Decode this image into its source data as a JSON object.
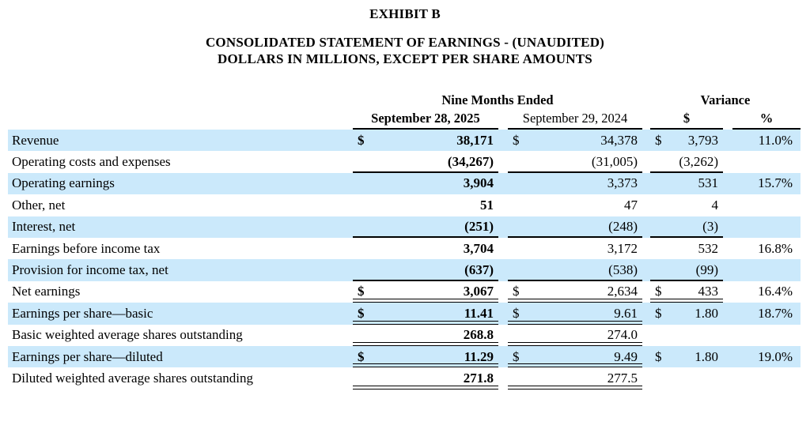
{
  "header": {
    "exhibit": "EXHIBIT B",
    "title_line1": "CONSOLIDATED STATEMENT OF EARNINGS - (UNAUDITED)",
    "title_line2": "DOLLARS IN MILLIONS, EXCEPT PER SHARE AMOUNTS"
  },
  "table": {
    "group_left": "Nine Months Ended",
    "group_right": "Variance",
    "columns": [
      "September 28, 2025",
      "September 29, 2024",
      "$",
      "%"
    ],
    "rows": [
      {
        "label": "Revenue",
        "shade": true,
        "c2025": {
          "cur": "$",
          "val": "38,171",
          "u": "none"
        },
        "c2024": {
          "cur": "$",
          "val": "34,378",
          "u": "none"
        },
        "vard": {
          "cur": "$",
          "val": "3,793",
          "u": "none"
        },
        "varp": "11.0%"
      },
      {
        "label": "Operating costs and expenses",
        "shade": false,
        "c2025": {
          "cur": "",
          "val": "(34,267)",
          "u": "single"
        },
        "c2024": {
          "cur": "",
          "val": "(31,005)",
          "u": "single"
        },
        "vard": {
          "cur": "",
          "val": "(3,262)",
          "u": "single"
        },
        "varp": ""
      },
      {
        "label": "Operating earnings",
        "shade": true,
        "c2025": {
          "cur": "",
          "val": "3,904",
          "u": "none"
        },
        "c2024": {
          "cur": "",
          "val": "3,373",
          "u": "none"
        },
        "vard": {
          "cur": "",
          "val": "531",
          "u": "none"
        },
        "varp": "15.7%"
      },
      {
        "label": "Other, net",
        "shade": false,
        "c2025": {
          "cur": "",
          "val": "51",
          "u": "none"
        },
        "c2024": {
          "cur": "",
          "val": "47",
          "u": "none"
        },
        "vard": {
          "cur": "",
          "val": "4",
          "u": "none"
        },
        "varp": ""
      },
      {
        "label": "Interest, net",
        "shade": true,
        "c2025": {
          "cur": "",
          "val": "(251)",
          "u": "single"
        },
        "c2024": {
          "cur": "",
          "val": "(248)",
          "u": "single"
        },
        "vard": {
          "cur": "",
          "val": "(3)",
          "u": "single"
        },
        "varp": ""
      },
      {
        "label": "Earnings before income tax",
        "shade": false,
        "c2025": {
          "cur": "",
          "val": "3,704",
          "u": "none"
        },
        "c2024": {
          "cur": "",
          "val": "3,172",
          "u": "none"
        },
        "vard": {
          "cur": "",
          "val": "532",
          "u": "none"
        },
        "varp": "16.8%"
      },
      {
        "label": "Provision for income tax, net",
        "shade": true,
        "c2025": {
          "cur": "",
          "val": "(637)",
          "u": "single"
        },
        "c2024": {
          "cur": "",
          "val": "(538)",
          "u": "single"
        },
        "vard": {
          "cur": "",
          "val": "(99)",
          "u": "single"
        },
        "varp": ""
      },
      {
        "label": "Net earnings",
        "shade": false,
        "c2025": {
          "cur": "$",
          "val": "3,067",
          "u": "double"
        },
        "c2024": {
          "cur": "$",
          "val": "2,634",
          "u": "double"
        },
        "vard": {
          "cur": "$",
          "val": "433",
          "u": "double"
        },
        "varp": "16.4%"
      },
      {
        "label": "Earnings per share—basic",
        "shade": true,
        "c2025": {
          "cur": "$",
          "val": "11.41",
          "u": "double"
        },
        "c2024": {
          "cur": "$",
          "val": "9.61",
          "u": "double"
        },
        "vard": {
          "cur": "$",
          "val": "1.80",
          "u": "none"
        },
        "varp": "18.7%"
      },
      {
        "label": "Basic weighted average shares outstanding",
        "shade": false,
        "c2025": {
          "cur": "",
          "val": "268.8",
          "u": "double"
        },
        "c2024": {
          "cur": "",
          "val": "274.0",
          "u": "double"
        },
        "vard": {
          "cur": "",
          "val": "",
          "u": "none"
        },
        "varp": ""
      },
      {
        "label": "Earnings per share—diluted",
        "shade": true,
        "c2025": {
          "cur": "$",
          "val": "11.29",
          "u": "double"
        },
        "c2024": {
          "cur": "$",
          "val": "9.49",
          "u": "double"
        },
        "vard": {
          "cur": "$",
          "val": "1.80",
          "u": "none"
        },
        "varp": "19.0%"
      },
      {
        "label": "Diluted weighted average shares outstanding",
        "shade": false,
        "c2025": {
          "cur": "",
          "val": "271.8",
          "u": "double"
        },
        "c2024": {
          "cur": "",
          "val": "277.5",
          "u": "double"
        },
        "vard": {
          "cur": "",
          "val": "",
          "u": "none"
        },
        "varp": ""
      }
    ]
  },
  "colors": {
    "row_shade": "#cbe9fb",
    "text": "#000000"
  }
}
